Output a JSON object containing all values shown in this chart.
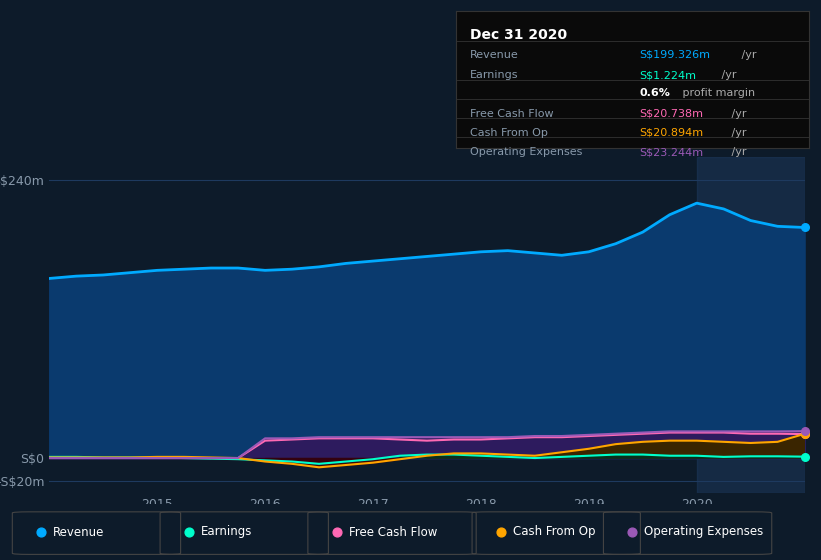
{
  "background_color": "#0d1b2a",
  "plot_bg_color": "#0d1b2a",
  "title_box": {
    "date": "Dec 31 2020",
    "rows": [
      {
        "label": "Revenue",
        "value": "S$199.326m",
        "value_color": "#00aaff",
        "suffix": " /yr"
      },
      {
        "label": "Earnings",
        "value": "S$1.224m",
        "value_color": "#00ffcc",
        "suffix": " /yr"
      },
      {
        "label": "",
        "value": "0.6%",
        "value_color": "#ffffff",
        "suffix": " profit margin",
        "bold_value": true
      },
      {
        "label": "Free Cash Flow",
        "value": "S$20.738m",
        "value_color": "#ff69b4",
        "suffix": " /yr"
      },
      {
        "label": "Cash From Op",
        "value": "S$20.894m",
        "value_color": "#ffa500",
        "suffix": " /yr"
      },
      {
        "label": "Operating Expenses",
        "value": "S$23.244m",
        "value_color": "#9b59b6",
        "suffix": " /yr"
      }
    ]
  },
  "years": [
    2014.0,
    2014.25,
    2014.5,
    2014.75,
    2015.0,
    2015.25,
    2015.5,
    2015.75,
    2016.0,
    2016.25,
    2016.5,
    2016.75,
    2017.0,
    2017.25,
    2017.5,
    2017.75,
    2018.0,
    2018.25,
    2018.5,
    2018.75,
    2019.0,
    2019.25,
    2019.5,
    2019.75,
    2020.0,
    2020.25,
    2020.5,
    2020.75,
    2021.0
  ],
  "revenue": [
    155,
    157,
    158,
    160,
    162,
    163,
    164,
    164,
    162,
    163,
    165,
    168,
    170,
    172,
    174,
    176,
    178,
    179,
    177,
    175,
    178,
    185,
    195,
    210,
    220,
    215,
    205,
    200,
    199
  ],
  "earnings": [
    1,
    1,
    0.5,
    0.5,
    0.5,
    0,
    -0.5,
    -1,
    -2,
    -3,
    -5,
    -3,
    -1,
    2,
    3,
    3,
    2,
    1,
    0,
    1,
    2,
    3,
    3,
    2,
    2,
    1,
    1.5,
    1.5,
    1.2
  ],
  "free_cash_flow": [
    0,
    0,
    0,
    0,
    0,
    0,
    0,
    0,
    15,
    16,
    17,
    17,
    17,
    16,
    15,
    16,
    16,
    17,
    18,
    18,
    19,
    20,
    21,
    22,
    22,
    22,
    21,
    21,
    20.7
  ],
  "cash_from_op": [
    0.5,
    0.5,
    0.5,
    0.5,
    1,
    1,
    0.5,
    0,
    -3,
    -5,
    -8,
    -6,
    -4,
    -1,
    2,
    4,
    4,
    3,
    2,
    5,
    8,
    12,
    14,
    15,
    15,
    14,
    13,
    14,
    20.9
  ],
  "operating_expenses": [
    0,
    0,
    0,
    0,
    0,
    0,
    0,
    0,
    17,
    17,
    18,
    18,
    18,
    18,
    18,
    18,
    18,
    18,
    19,
    19,
    20,
    21,
    22,
    23,
    23,
    23,
    23,
    23,
    23.2
  ],
  "revenue_color": "#00aaff",
  "earnings_color": "#00ffcc",
  "free_cash_flow_color": "#ff69b4",
  "cash_from_op_color": "#ffa500",
  "operating_expenses_color": "#9b59b6",
  "revenue_fill_color": "#0a3a6e",
  "operating_expenses_fill_color": "#2d1b5e",
  "cash_from_op_fill_color_pos": "#4a3000",
  "cash_from_op_fill_color_neg": "#3a0a0a",
  "ylim": [
    -30,
    260
  ],
  "yticks": [
    -20,
    0,
    240
  ],
  "ytick_labels": [
    "-S$20m",
    "S$0",
    "S$240m"
  ],
  "xticks": [
    2015,
    2016,
    2017,
    2018,
    2019,
    2020
  ],
  "grid_color": "#1e3a5f",
  "text_color": "#8899aa",
  "legend_items": [
    {
      "label": "Revenue",
      "color": "#00aaff",
      "marker": "o"
    },
    {
      "label": "Earnings",
      "color": "#00ffcc",
      "marker": "o"
    },
    {
      "label": "Free Cash Flow",
      "color": "#ff69b4",
      "marker": "o"
    },
    {
      "label": "Cash From Op",
      "color": "#ffa500",
      "marker": "o"
    },
    {
      "label": "Operating Expenses",
      "color": "#9b59b6",
      "marker": "o"
    }
  ],
  "highlight_x": 2020.0,
  "highlight_color": "#1e3a5f"
}
